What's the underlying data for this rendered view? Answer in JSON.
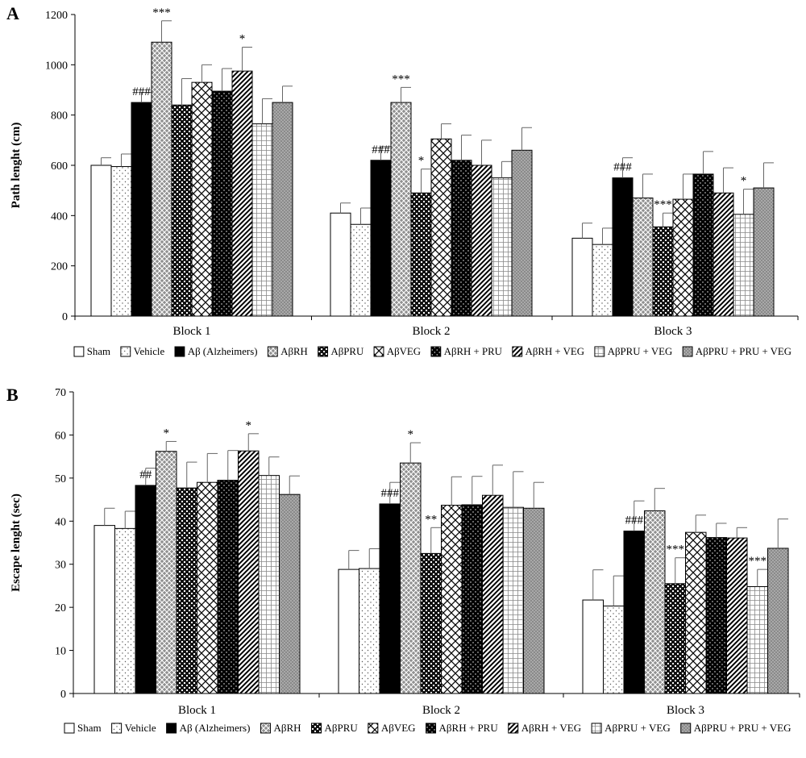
{
  "patterns": [
    {
      "id": "p-sham",
      "kind": "plain"
    },
    {
      "id": "p-vehicle",
      "kind": "dots"
    },
    {
      "id": "p-ab",
      "kind": "solid"
    },
    {
      "id": "p-rh",
      "kind": "crossgray"
    },
    {
      "id": "p-pru",
      "kind": "darkcheck"
    },
    {
      "id": "p-veg",
      "kind": "crosshatch"
    },
    {
      "id": "p-rhpru",
      "kind": "darkdots"
    },
    {
      "id": "p-rhveg",
      "kind": "diagonal"
    },
    {
      "id": "p-pruveg",
      "kind": "grid"
    },
    {
      "id": "p-all",
      "kind": "graydots"
    }
  ],
  "chart_data": [
    {
      "type": "bar",
      "panel_label": "A",
      "ylabel": "Path lenght (cm)",
      "categories": [
        "Block 1",
        "Block 2",
        "Block 3"
      ],
      "ylim": [
        0,
        1200
      ],
      "yticks": [
        0,
        200,
        400,
        600,
        800,
        1000,
        1200
      ],
      "grid": false,
      "legend_position": "bottom",
      "series": [
        {
          "name": "Sham",
          "values": [
            600,
            410,
            310
          ],
          "errors": [
            30,
            40,
            60
          ]
        },
        {
          "name": "Vehicle",
          "values": [
            595,
            365,
            285
          ],
          "errors": [
            50,
            65,
            65
          ]
        },
        {
          "name": "Aβ (Alzheimers)",
          "values": [
            850,
            620,
            550
          ],
          "errors": [
            40,
            55,
            80
          ]
        },
        {
          "name": "AβRH",
          "values": [
            1090,
            850,
            470
          ],
          "errors": [
            85,
            60,
            95
          ]
        },
        {
          "name": "AβPRU",
          "values": [
            840,
            490,
            355
          ],
          "errors": [
            105,
            95,
            55
          ]
        },
        {
          "name": "AβVEG",
          "values": [
            930,
            705,
            465
          ],
          "errors": [
            70,
            60,
            100
          ]
        },
        {
          "name": "AβRH + PRU",
          "values": [
            895,
            620,
            565
          ],
          "errors": [
            90,
            100,
            90
          ]
        },
        {
          "name": "AβRH + VEG",
          "values": [
            975,
            600,
            490
          ],
          "errors": [
            95,
            100,
            100
          ]
        },
        {
          "name": "AβPRU + VEG",
          "values": [
            765,
            550,
            405
          ],
          "errors": [
            100,
            65,
            100
          ]
        },
        {
          "name": "AβPRU + PRU + VEG",
          "values": [
            850,
            660,
            510
          ],
          "errors": [
            65,
            90,
            100
          ]
        }
      ],
      "annotations": [
        {
          "category": 0,
          "series": 2,
          "text": "###"
        },
        {
          "category": 0,
          "series": 3,
          "text": "***"
        },
        {
          "category": 0,
          "series": 7,
          "text": "*"
        },
        {
          "category": 1,
          "series": 2,
          "text": "###"
        },
        {
          "category": 1,
          "series": 3,
          "text": "***"
        },
        {
          "category": 1,
          "series": 4,
          "text": "*"
        },
        {
          "category": 2,
          "series": 2,
          "text": "###"
        },
        {
          "category": 2,
          "series": 4,
          "text": "***"
        },
        {
          "category": 2,
          "series": 8,
          "text": "*"
        }
      ]
    },
    {
      "type": "bar",
      "panel_label": "B",
      "ylabel": "Escape lenght (sec)",
      "categories": [
        "Block 1",
        "Block 2",
        "Block 3"
      ],
      "ylim": [
        0,
        70
      ],
      "yticks": [
        0,
        10,
        20,
        30,
        40,
        50,
        60,
        70
      ],
      "grid": false,
      "legend_position": "bottom",
      "series": [
        {
          "name": "Sham",
          "values": [
            39,
            28.8,
            21.7
          ],
          "errors": [
            4,
            4.4,
            7
          ]
        },
        {
          "name": "Vehicle",
          "values": [
            38.3,
            29,
            20.3
          ],
          "errors": [
            4,
            4.6,
            7
          ]
        },
        {
          "name": "Aβ (Alzheimers)",
          "values": [
            48.3,
            44,
            37.7
          ],
          "errors": [
            4,
            5,
            7
          ]
        },
        {
          "name": "AβRH",
          "values": [
            56.2,
            53.5,
            42.4
          ],
          "errors": [
            2.3,
            4.7,
            5.2
          ]
        },
        {
          "name": "AβPRU",
          "values": [
            47.7,
            32.5,
            25.5
          ],
          "errors": [
            6,
            6,
            6
          ]
        },
        {
          "name": "AβVEG",
          "values": [
            49,
            43.7,
            37.4
          ],
          "errors": [
            6.7,
            6.6,
            4
          ]
        },
        {
          "name": "AβRH + PRU",
          "values": [
            49.5,
            43.8,
            36.2
          ],
          "errors": [
            6.9,
            6.6,
            3.3
          ]
        },
        {
          "name": "AβRH + VEG",
          "values": [
            56.3,
            46,
            36.1
          ],
          "errors": [
            4,
            7,
            2.4
          ]
        },
        {
          "name": "AβPRU + VEG",
          "values": [
            50.6,
            43.2,
            24.8
          ],
          "errors": [
            4.3,
            8.3,
            4
          ]
        },
        {
          "name": "AβPRU + PRU + VEG",
          "values": [
            46.2,
            43,
            33.7
          ],
          "errors": [
            4.3,
            6,
            6.8
          ]
        }
      ],
      "annotations": [
        {
          "category": 0,
          "series": 2,
          "text": "##"
        },
        {
          "category": 0,
          "series": 3,
          "text": "*"
        },
        {
          "category": 0,
          "series": 7,
          "text": "*"
        },
        {
          "category": 1,
          "series": 2,
          "text": "###"
        },
        {
          "category": 1,
          "series": 3,
          "text": "*"
        },
        {
          "category": 1,
          "series": 4,
          "text": "**"
        },
        {
          "category": 2,
          "series": 2,
          "text": "###"
        },
        {
          "category": 2,
          "series": 4,
          "text": "***"
        },
        {
          "category": 2,
          "series": 8,
          "text": "***"
        }
      ]
    }
  ]
}
